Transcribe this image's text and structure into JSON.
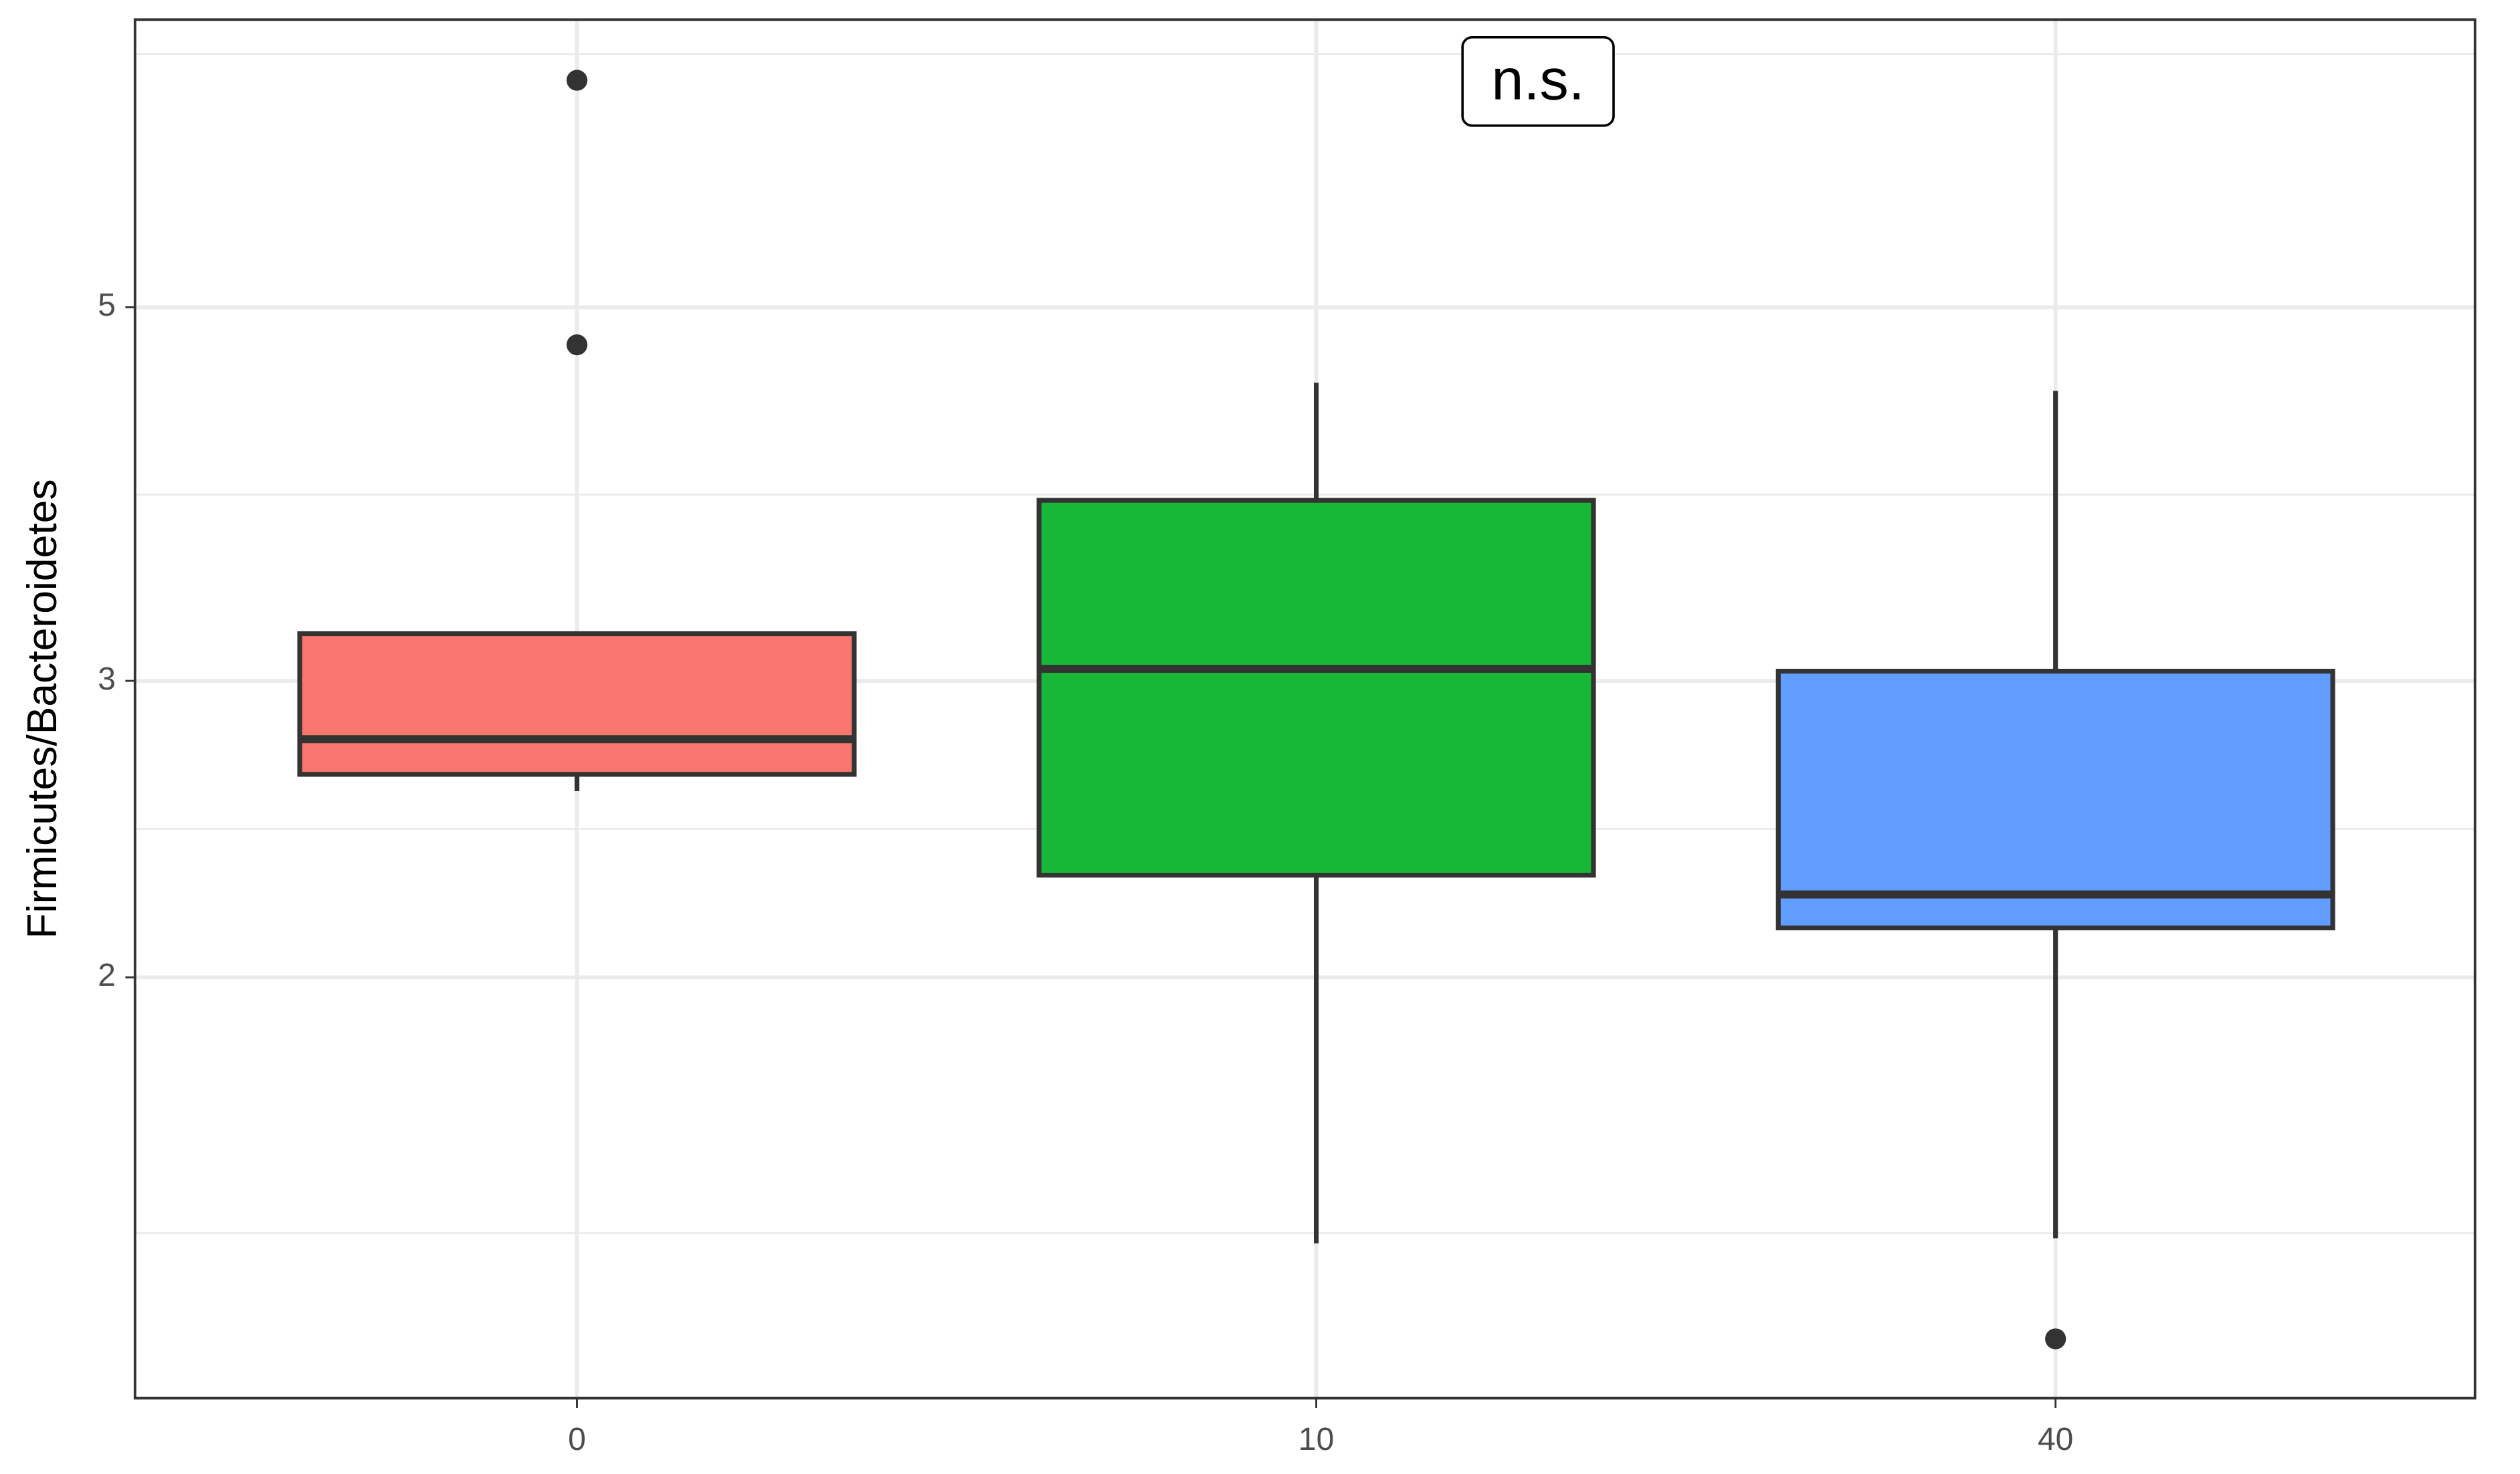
{
  "chart_data": {
    "type": "box",
    "y_label": "Firmicutes/Bacteroidetes",
    "annotation": "n.s.",
    "categories": [
      "0",
      "10",
      "40"
    ],
    "boxes": [
      {
        "color": "#F8766D",
        "whislo": 2.58,
        "q1": 2.64,
        "med": 2.77,
        "q3": 3.2,
        "whishi": 3.2,
        "fliers": [
          4.75,
          6.82
        ]
      },
      {
        "color": "#17B838",
        "whislo": 1.39,
        "q1": 2.3,
        "med": 3.05,
        "q3": 3.84,
        "whishi": 4.51,
        "fliers": []
      },
      {
        "color": "#619CFF",
        "whislo": 1.4,
        "q1": 2.14,
        "med": 2.24,
        "q3": 3.04,
        "whishi": 4.46,
        "fliers": [
          1.22
        ]
      }
    ],
    "ylim": [
      1.125,
      7.41
    ],
    "yticks": [
      2,
      3,
      5
    ],
    "minor_yticks": [
      1.41,
      2.45,
      3.87,
      7.07
    ],
    "log_y": true,
    "grid": true
  }
}
